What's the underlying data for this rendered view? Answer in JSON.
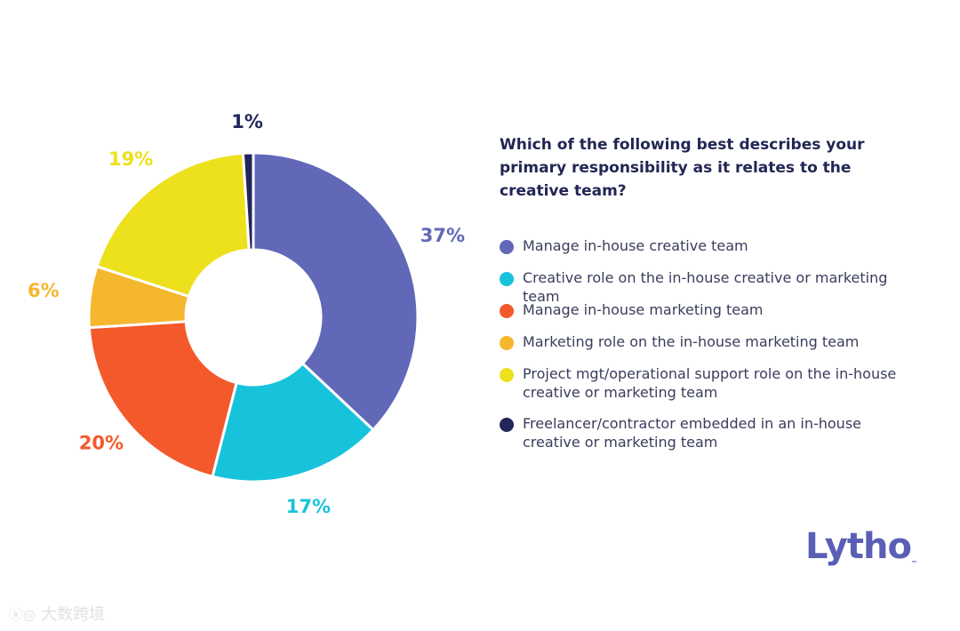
{
  "chart_data": {
    "type": "pie",
    "style": "donut",
    "title": "Which of the following best describes your primary responsibility as it relates to the creative team?",
    "categories": [
      "Manage in-house creative team",
      "Creative role on the in-house creative or marketing team",
      "Manage in-house marketing team",
      "Marketing role on the in-house marketing team",
      "Project mgt/operational support role on the in-house creative or marketing team",
      "Freelancer/contractor embedded in an in-house creative or marketing team"
    ],
    "values": [
      37,
      17,
      20,
      6,
      19,
      1
    ],
    "labels": [
      "37%",
      "17%",
      "20%",
      "6%",
      "19%",
      "1%"
    ],
    "colors": [
      "#6168b8",
      "#17c3db",
      "#f4592b",
      "#f5b72e",
      "#ede01d",
      "#23265a"
    ],
    "legend_position": "right"
  },
  "brand": {
    "logo_text": "Lytho",
    "logo_mark": "™"
  },
  "watermark": {
    "text": "大数跨境"
  }
}
